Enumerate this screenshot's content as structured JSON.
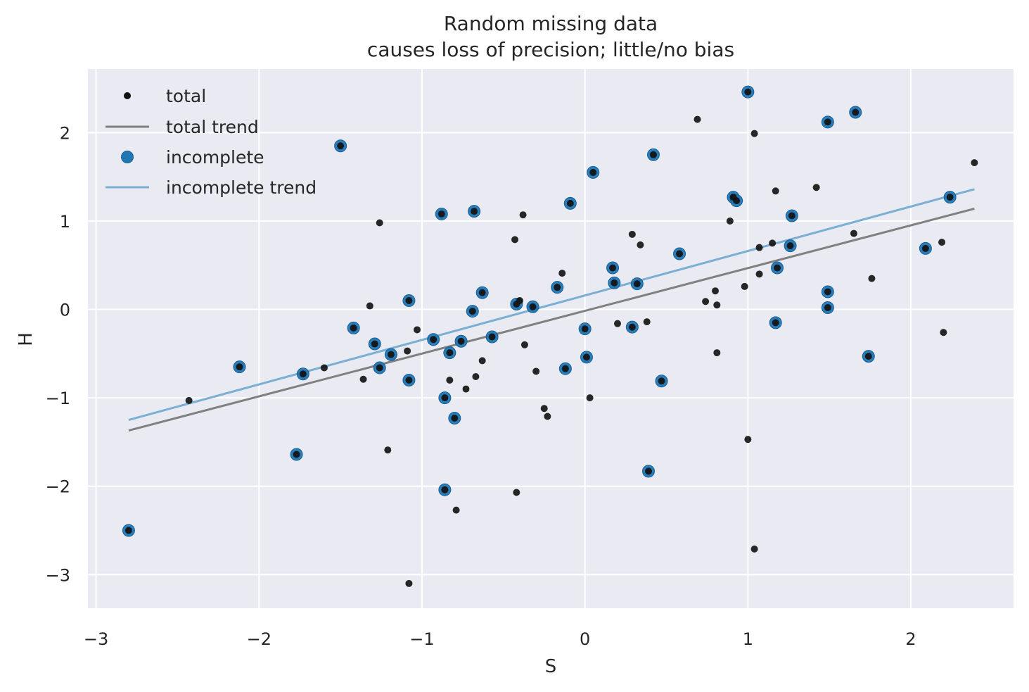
{
  "chart_data": {
    "type": "scatter",
    "title": "Random missing data",
    "subtitle": "causes loss of precision; little/no bias",
    "xlabel": "S",
    "ylabel": "H",
    "xlim": [
      -3.05,
      2.63
    ],
    "ylim": [
      -3.38,
      2.72
    ],
    "xticks": [
      -3,
      -2,
      -1,
      0,
      1,
      2
    ],
    "yticks": [
      -3,
      -2,
      -1,
      0,
      1,
      2
    ],
    "xtick_labels": [
      "−3",
      "−2",
      "−1",
      "0",
      "1",
      "2"
    ],
    "ytick_labels": [
      "−3",
      "−2",
      "−1",
      "0",
      "1",
      "2"
    ],
    "grid": true,
    "legend_position": "top-left",
    "colors": {
      "background": "#eaeaf2",
      "grid": "#ffffff",
      "total_points": "#111111",
      "total_trend": "#808080",
      "incomplete_points": "#1f77b4",
      "incomplete_trend": "#7aafd3"
    },
    "legend": [
      {
        "label": "total",
        "kind": "point-small"
      },
      {
        "label": "total trend",
        "kind": "line-gray"
      },
      {
        "label": "incomplete",
        "kind": "point-large"
      },
      {
        "label": "incomplete trend",
        "kind": "line-blue"
      }
    ],
    "series": [
      {
        "name": "total",
        "points": [
          [
            -2.8,
            -2.5
          ],
          [
            -2.43,
            -1.03
          ],
          [
            -2.12,
            -0.65
          ],
          [
            -1.77,
            -1.64
          ],
          [
            -1.73,
            -0.73
          ],
          [
            -1.6,
            -0.66
          ],
          [
            -1.5,
            1.85
          ],
          [
            -1.42,
            -0.21
          ],
          [
            -1.36,
            -0.79
          ],
          [
            -1.32,
            0.04
          ],
          [
            -1.29,
            -0.39
          ],
          [
            -1.26,
            0.98
          ],
          [
            -1.26,
            -0.66
          ],
          [
            -1.21,
            -1.59
          ],
          [
            -1.19,
            -0.51
          ],
          [
            -1.09,
            -0.47
          ],
          [
            -1.08,
            0.1
          ],
          [
            -1.08,
            -0.8
          ],
          [
            -1.08,
            -3.1
          ],
          [
            -1.03,
            -0.23
          ],
          [
            -0.93,
            -0.34
          ],
          [
            -0.88,
            1.08
          ],
          [
            -0.86,
            -1.0
          ],
          [
            -0.86,
            -2.04
          ],
          [
            -0.83,
            -0.49
          ],
          [
            -0.83,
            -0.8
          ],
          [
            -0.8,
            -1.23
          ],
          [
            -0.79,
            -2.27
          ],
          [
            -0.76,
            -0.36
          ],
          [
            -0.73,
            -0.9
          ],
          [
            -0.69,
            -0.02
          ],
          [
            -0.68,
            1.11
          ],
          [
            -0.67,
            -0.76
          ],
          [
            -0.63,
            0.19
          ],
          [
            -0.63,
            -0.58
          ],
          [
            -0.57,
            -0.31
          ],
          [
            -0.43,
            0.79
          ],
          [
            -0.42,
            0.06
          ],
          [
            -0.42,
            -2.07
          ],
          [
            -0.4,
            0.1
          ],
          [
            -0.38,
            1.07
          ],
          [
            -0.37,
            -0.4
          ],
          [
            -0.32,
            0.03
          ],
          [
            -0.3,
            -0.7
          ],
          [
            -0.25,
            -1.12
          ],
          [
            -0.23,
            -1.21
          ],
          [
            -0.17,
            0.25
          ],
          [
            -0.14,
            0.41
          ],
          [
            -0.12,
            -0.67
          ],
          [
            -0.09,
            1.2
          ],
          [
            0.0,
            -0.22
          ],
          [
            0.01,
            -0.54
          ],
          [
            0.03,
            -1.0
          ],
          [
            0.05,
            1.55
          ],
          [
            0.17,
            0.47
          ],
          [
            0.18,
            0.3
          ],
          [
            0.2,
            -0.16
          ],
          [
            0.29,
            0.85
          ],
          [
            0.29,
            -0.2
          ],
          [
            0.32,
            0.29
          ],
          [
            0.34,
            0.73
          ],
          [
            0.38,
            -0.14
          ],
          [
            0.39,
            -1.83
          ],
          [
            0.42,
            1.75
          ],
          [
            0.47,
            -0.81
          ],
          [
            0.58,
            0.63
          ],
          [
            0.69,
            2.15
          ],
          [
            0.74,
            0.09
          ],
          [
            0.8,
            0.21
          ],
          [
            0.81,
            0.05
          ],
          [
            0.81,
            -0.49
          ],
          [
            0.89,
            1.0
          ],
          [
            0.91,
            1.27
          ],
          [
            0.93,
            1.23
          ],
          [
            0.98,
            0.26
          ],
          [
            1.0,
            2.46
          ],
          [
            1.0,
            -1.47
          ],
          [
            1.04,
            1.99
          ],
          [
            1.04,
            -2.71
          ],
          [
            1.07,
            0.7
          ],
          [
            1.07,
            0.4
          ],
          [
            1.15,
            0.75
          ],
          [
            1.17,
            -0.15
          ],
          [
            1.17,
            1.34
          ],
          [
            1.18,
            0.47
          ],
          [
            1.26,
            0.72
          ],
          [
            1.27,
            1.06
          ],
          [
            1.42,
            1.38
          ],
          [
            1.49,
            2.12
          ],
          [
            1.49,
            0.2
          ],
          [
            1.49,
            0.02
          ],
          [
            1.65,
            0.86
          ],
          [
            1.66,
            2.23
          ],
          [
            1.74,
            -0.53
          ],
          [
            1.76,
            0.35
          ],
          [
            2.09,
            0.69
          ],
          [
            2.19,
            0.76
          ],
          [
            2.2,
            -0.26
          ],
          [
            2.24,
            1.27
          ],
          [
            2.39,
            1.66
          ]
        ]
      },
      {
        "name": "incomplete",
        "points": [
          [
            -2.8,
            -2.5
          ],
          [
            -2.12,
            -0.65
          ],
          [
            -1.77,
            -1.64
          ],
          [
            -1.73,
            -0.73
          ],
          [
            -1.5,
            1.85
          ],
          [
            -1.42,
            -0.21
          ],
          [
            -1.29,
            -0.39
          ],
          [
            -1.26,
            -0.66
          ],
          [
            -1.19,
            -0.51
          ],
          [
            -1.08,
            0.1
          ],
          [
            -1.08,
            -0.8
          ],
          [
            -0.93,
            -0.34
          ],
          [
            -0.88,
            1.08
          ],
          [
            -0.86,
            -1.0
          ],
          [
            -0.86,
            -2.04
          ],
          [
            -0.83,
            -0.49
          ],
          [
            -0.8,
            -1.23
          ],
          [
            -0.76,
            -0.36
          ],
          [
            -0.69,
            -0.02
          ],
          [
            -0.68,
            1.11
          ],
          [
            -0.63,
            0.19
          ],
          [
            -0.57,
            -0.31
          ],
          [
            -0.42,
            0.06
          ],
          [
            -0.32,
            0.03
          ],
          [
            -0.17,
            0.25
          ],
          [
            -0.12,
            -0.67
          ],
          [
            -0.09,
            1.2
          ],
          [
            0.0,
            -0.22
          ],
          [
            0.01,
            -0.54
          ],
          [
            0.05,
            1.55
          ],
          [
            0.17,
            0.47
          ],
          [
            0.18,
            0.3
          ],
          [
            0.29,
            -0.2
          ],
          [
            0.32,
            0.29
          ],
          [
            0.39,
            -1.83
          ],
          [
            0.42,
            1.75
          ],
          [
            0.47,
            -0.81
          ],
          [
            0.58,
            0.63
          ],
          [
            0.91,
            1.27
          ],
          [
            0.93,
            1.23
          ],
          [
            1.0,
            2.46
          ],
          [
            1.17,
            -0.15
          ],
          [
            1.18,
            0.47
          ],
          [
            1.26,
            0.72
          ],
          [
            1.27,
            1.06
          ],
          [
            1.49,
            2.12
          ],
          [
            1.49,
            0.2
          ],
          [
            1.49,
            0.02
          ],
          [
            1.66,
            2.23
          ],
          [
            1.74,
            -0.53
          ],
          [
            2.09,
            0.69
          ],
          [
            2.24,
            1.27
          ]
        ]
      }
    ],
    "trends": [
      {
        "name": "total trend",
        "x": [
          -2.8,
          2.39
        ],
        "y": [
          -1.37,
          1.14
        ]
      },
      {
        "name": "incomplete trend",
        "x": [
          -2.8,
          2.39
        ],
        "y": [
          -1.25,
          1.36
        ]
      }
    ]
  }
}
